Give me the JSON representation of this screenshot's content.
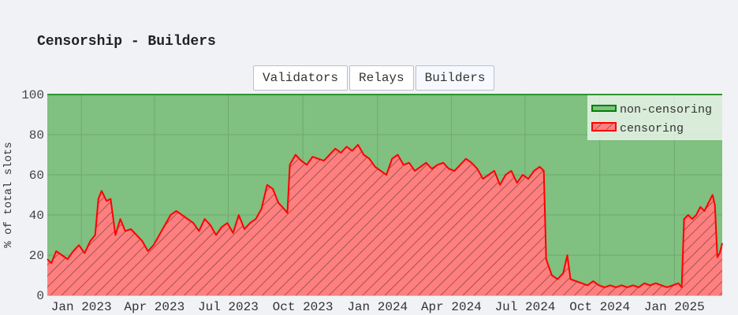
{
  "title": "Censorship - Builders",
  "buttons": [
    {
      "label": "Validators"
    },
    {
      "label": "Relays"
    },
    {
      "label": "Builders"
    }
  ],
  "colors": {
    "plot_bg": "#80c080",
    "noncensor_line": "#008000",
    "censor_fill": "#ff7f7f",
    "censor_line": "#ff0000",
    "hatch": "#7a4040",
    "grid": "#6fa96f"
  },
  "chart_data": {
    "type": "area",
    "title": "Censorship - Builders",
    "ylabel": "% of total slots",
    "ylim": [
      0,
      100
    ],
    "yticks": [
      0,
      20,
      40,
      60,
      80,
      100
    ],
    "xlim": [
      "2022-11-20",
      "2025-03-01"
    ],
    "xticks": [
      {
        "date": "2023-01-01",
        "label": "Jan 2023"
      },
      {
        "date": "2023-04-01",
        "label": "Apr 2023"
      },
      {
        "date": "2023-07-01",
        "label": "Jul 2023"
      },
      {
        "date": "2023-10-01",
        "label": "Oct 2023"
      },
      {
        "date": "2024-01-01",
        "label": "Jan 2024"
      },
      {
        "date": "2024-04-01",
        "label": "Apr 2024"
      },
      {
        "date": "2024-07-01",
        "label": "Jul 2024"
      },
      {
        "date": "2024-10-01",
        "label": "Oct 2024"
      },
      {
        "date": "2025-01-01",
        "label": "Jan 2025"
      }
    ],
    "legend_position": "top-right",
    "stacked_total": 100,
    "series": [
      {
        "name": "non-censoring",
        "color": "#008000"
      },
      {
        "name": "censoring",
        "color": "#ff0000",
        "points": [
          [
            "2022-11-20",
            18
          ],
          [
            "2022-11-25",
            16
          ],
          [
            "2022-12-01",
            22
          ],
          [
            "2022-12-08",
            20
          ],
          [
            "2022-12-15",
            18
          ],
          [
            "2022-12-22",
            22
          ],
          [
            "2022-12-29",
            25
          ],
          [
            "2023-01-05",
            21
          ],
          [
            "2023-01-12",
            27
          ],
          [
            "2023-01-18",
            30
          ],
          [
            "2023-01-22",
            48
          ],
          [
            "2023-01-26",
            52
          ],
          [
            "2023-02-01",
            47
          ],
          [
            "2023-02-06",
            48
          ],
          [
            "2023-02-12",
            30
          ],
          [
            "2023-02-18",
            38
          ],
          [
            "2023-02-24",
            32
          ],
          [
            "2023-03-03",
            33
          ],
          [
            "2023-03-10",
            30
          ],
          [
            "2023-03-17",
            27
          ],
          [
            "2023-03-24",
            22
          ],
          [
            "2023-03-31",
            25
          ],
          [
            "2023-04-07",
            30
          ],
          [
            "2023-04-14",
            35
          ],
          [
            "2023-04-21",
            40
          ],
          [
            "2023-04-28",
            42
          ],
          [
            "2023-05-05",
            40
          ],
          [
            "2023-05-12",
            38
          ],
          [
            "2023-05-19",
            36
          ],
          [
            "2023-05-26",
            32
          ],
          [
            "2023-06-02",
            38
          ],
          [
            "2023-06-09",
            35
          ],
          [
            "2023-06-16",
            30
          ],
          [
            "2023-06-23",
            34
          ],
          [
            "2023-06-30",
            36
          ],
          [
            "2023-07-07",
            31
          ],
          [
            "2023-07-14",
            40
          ],
          [
            "2023-07-21",
            33
          ],
          [
            "2023-07-28",
            36
          ],
          [
            "2023-08-04",
            38
          ],
          [
            "2023-08-11",
            43
          ],
          [
            "2023-08-18",
            55
          ],
          [
            "2023-08-25",
            53
          ],
          [
            "2023-09-01",
            46
          ],
          [
            "2023-09-08",
            43
          ],
          [
            "2023-09-12",
            41
          ],
          [
            "2023-09-15",
            65
          ],
          [
            "2023-09-22",
            70
          ],
          [
            "2023-09-29",
            67
          ],
          [
            "2023-10-06",
            65
          ],
          [
            "2023-10-13",
            69
          ],
          [
            "2023-10-20",
            68
          ],
          [
            "2023-10-27",
            67
          ],
          [
            "2023-11-03",
            70
          ],
          [
            "2023-11-10",
            73
          ],
          [
            "2023-11-17",
            71
          ],
          [
            "2023-11-24",
            74
          ],
          [
            "2023-12-01",
            72
          ],
          [
            "2023-12-08",
            75
          ],
          [
            "2023-12-15",
            70
          ],
          [
            "2023-12-22",
            68
          ],
          [
            "2023-12-29",
            64
          ],
          [
            "2024-01-05",
            62
          ],
          [
            "2024-01-12",
            60
          ],
          [
            "2024-01-19",
            68
          ],
          [
            "2024-01-26",
            70
          ],
          [
            "2024-02-02",
            65
          ],
          [
            "2024-02-09",
            66
          ],
          [
            "2024-02-16",
            62
          ],
          [
            "2024-02-23",
            64
          ],
          [
            "2024-03-01",
            66
          ],
          [
            "2024-03-08",
            63
          ],
          [
            "2024-03-15",
            65
          ],
          [
            "2024-03-22",
            66
          ],
          [
            "2024-03-29",
            63
          ],
          [
            "2024-04-05",
            62
          ],
          [
            "2024-04-12",
            65
          ],
          [
            "2024-04-19",
            68
          ],
          [
            "2024-04-26",
            66
          ],
          [
            "2024-05-03",
            63
          ],
          [
            "2024-05-10",
            58
          ],
          [
            "2024-05-17",
            60
          ],
          [
            "2024-05-24",
            62
          ],
          [
            "2024-05-31",
            55
          ],
          [
            "2024-06-07",
            60
          ],
          [
            "2024-06-14",
            62
          ],
          [
            "2024-06-21",
            56
          ],
          [
            "2024-06-28",
            60
          ],
          [
            "2024-07-05",
            58
          ],
          [
            "2024-07-12",
            62
          ],
          [
            "2024-07-19",
            64
          ],
          [
            "2024-07-24",
            62
          ],
          [
            "2024-07-27",
            18
          ],
          [
            "2024-08-03",
            10
          ],
          [
            "2024-08-10",
            8
          ],
          [
            "2024-08-17",
            11
          ],
          [
            "2024-08-22",
            20
          ],
          [
            "2024-08-26",
            8
          ],
          [
            "2024-09-02",
            7
          ],
          [
            "2024-09-09",
            6
          ],
          [
            "2024-09-16",
            5
          ],
          [
            "2024-09-23",
            7
          ],
          [
            "2024-09-30",
            5
          ],
          [
            "2024-10-07",
            4
          ],
          [
            "2024-10-14",
            5
          ],
          [
            "2024-10-21",
            4
          ],
          [
            "2024-10-28",
            5
          ],
          [
            "2024-11-04",
            4
          ],
          [
            "2024-11-11",
            5
          ],
          [
            "2024-11-18",
            4
          ],
          [
            "2024-11-25",
            6
          ],
          [
            "2024-12-02",
            5
          ],
          [
            "2024-12-09",
            6
          ],
          [
            "2024-12-16",
            5
          ],
          [
            "2024-12-23",
            4
          ],
          [
            "2024-12-30",
            5
          ],
          [
            "2025-01-06",
            6
          ],
          [
            "2025-01-10",
            4
          ],
          [
            "2025-01-13",
            38
          ],
          [
            "2025-01-18",
            40
          ],
          [
            "2025-01-23",
            38
          ],
          [
            "2025-01-28",
            40
          ],
          [
            "2025-02-02",
            44
          ],
          [
            "2025-02-07",
            42
          ],
          [
            "2025-02-12",
            46
          ],
          [
            "2025-02-17",
            50
          ],
          [
            "2025-02-20",
            45
          ],
          [
            "2025-02-23",
            19
          ],
          [
            "2025-02-26",
            21
          ],
          [
            "2025-03-01",
            26
          ]
        ]
      }
    ]
  }
}
